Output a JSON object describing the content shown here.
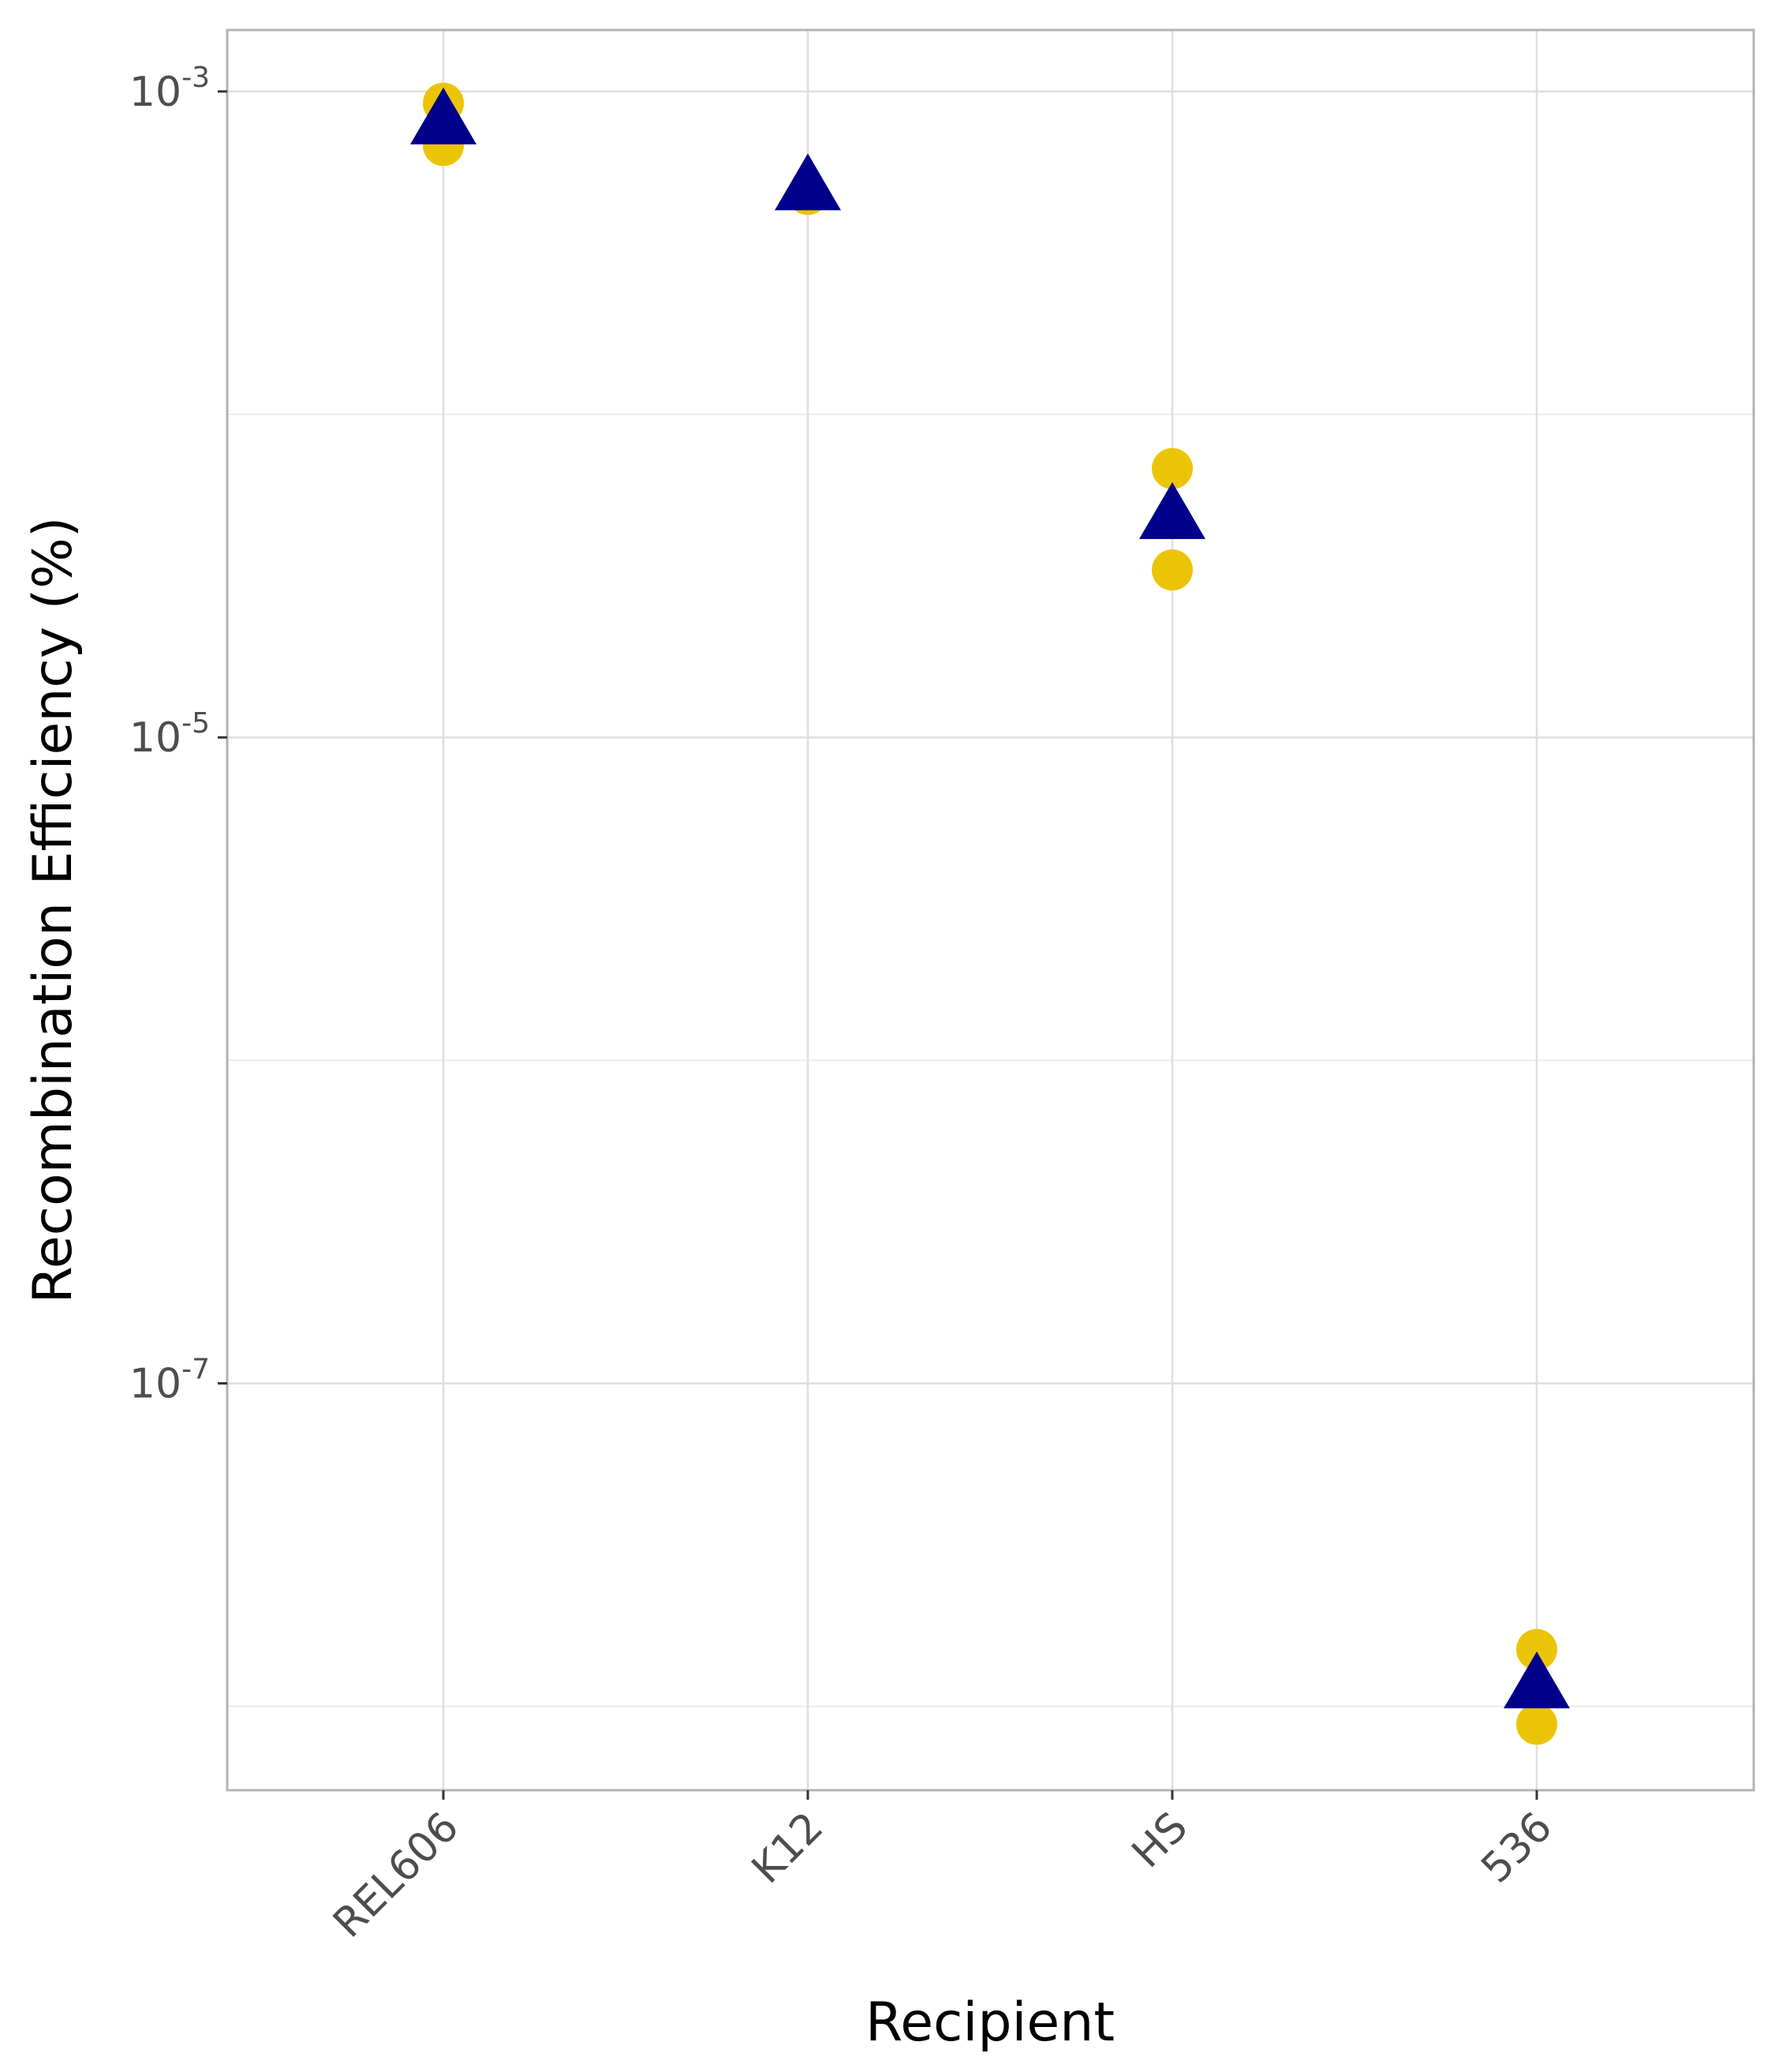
{
  "chart_data": {
    "type": "scatter",
    "xlabel": "Recipient",
    "ylabel": "Recombination Efficiency (%)",
    "y_scale": "log10",
    "ylim": [
      5.5e-09,
      0.00155
    ],
    "grid": true,
    "categories": [
      "REL606",
      "K12",
      "HS",
      "536"
    ],
    "y_ticks": [
      {
        "value": 0.001,
        "base": "10",
        "exp": "-3"
      },
      {
        "value": 1e-05,
        "base": "10",
        "exp": "-5"
      },
      {
        "value": 1e-07,
        "base": "10",
        "exp": "-7"
      }
    ],
    "y_minor_gridlines": [
      0.0001,
      1e-06,
      1e-08
    ],
    "series": [
      {
        "marker": "circle",
        "color": "#EBC505",
        "points": [
          {
            "x": "REL606",
            "y": 0.00092
          },
          {
            "x": "REL606",
            "y": 0.00068
          },
          {
            "x": "K12",
            "y": 0.00048
          },
          {
            "x": "HS",
            "y": 6.8e-05
          },
          {
            "x": "HS",
            "y": 3.3e-05
          },
          {
            "x": "536",
            "y": 1.5e-08
          },
          {
            "x": "536",
            "y": 8.8e-09
          }
        ]
      },
      {
        "marker": "triangle",
        "color": "#00008B",
        "points": [
          {
            "x": "REL606",
            "y": 0.0008
          },
          {
            "x": "K12",
            "y": 0.0005
          },
          {
            "x": "HS",
            "y": 4.8e-05
          },
          {
            "x": "536",
            "y": 1.15e-08
          }
        ]
      }
    ]
  }
}
